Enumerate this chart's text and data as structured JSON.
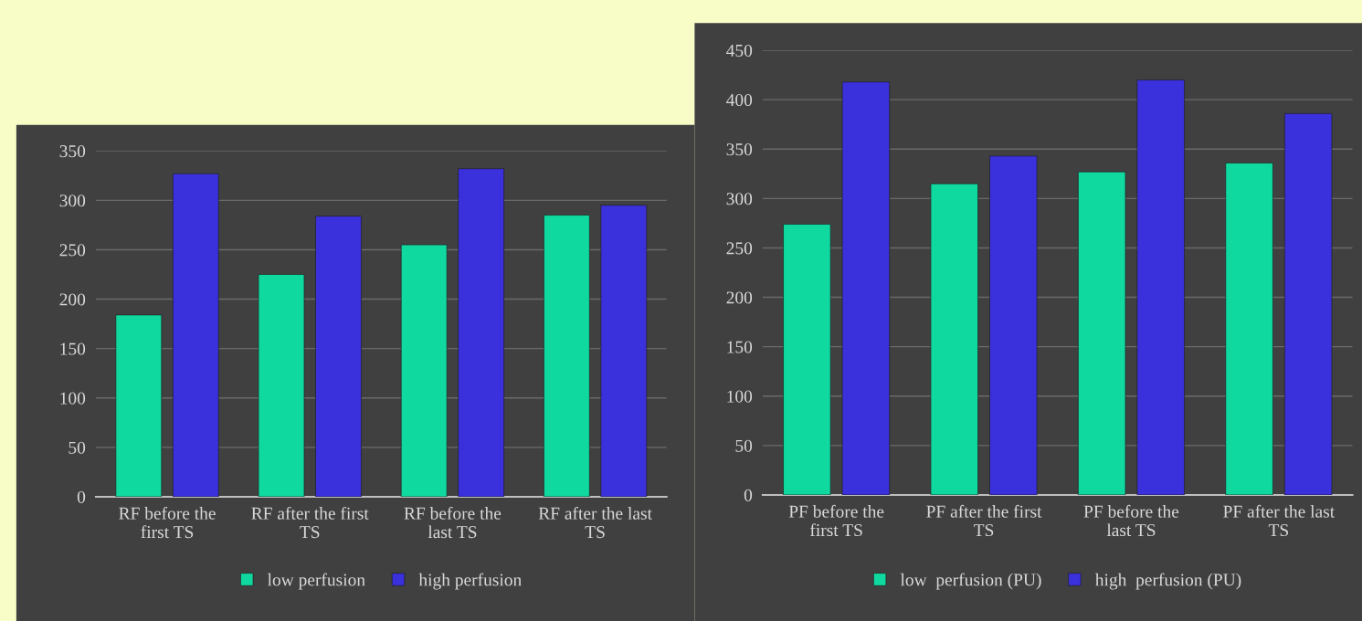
{
  "chart_data": [
    {
      "type": "bar",
      "categories": [
        "RF before the\nfirst TS",
        "RF after the first\nTS",
        "RF before the\nlast TS",
        "RF after the last\nTS"
      ],
      "series": [
        {
          "name": "low perfusion",
          "color": "#10d9a0",
          "values": [
            184,
            225,
            255,
            285
          ]
        },
        {
          "name": "high perfusion",
          "color": "#3a30dc",
          "values": [
            327,
            284,
            332,
            295
          ]
        }
      ],
      "ylim": [
        0,
        350
      ],
      "yticks": [
        0,
        50,
        100,
        150,
        200,
        250,
        300,
        350
      ],
      "grid": "y",
      "legend": "bottom"
    },
    {
      "type": "bar",
      "categories": [
        "PF before the\nfirst TS",
        "PF after the first\nTS",
        "PF before the\nlast TS",
        "PF after the last\nTS"
      ],
      "series": [
        {
          "name": "low  perfusion (PU)",
          "color": "#10d9a0",
          "values": [
            274,
            315,
            327,
            336
          ]
        },
        {
          "name": "high  perfusion (PU)",
          "color": "#3a30dc",
          "values": [
            418,
            343,
            420,
            386
          ]
        }
      ],
      "ylim": [
        0,
        450
      ],
      "yticks": [
        0,
        50,
        100,
        150,
        200,
        250,
        300,
        350,
        400,
        450
      ],
      "grid": "y",
      "legend": "bottom"
    }
  ]
}
